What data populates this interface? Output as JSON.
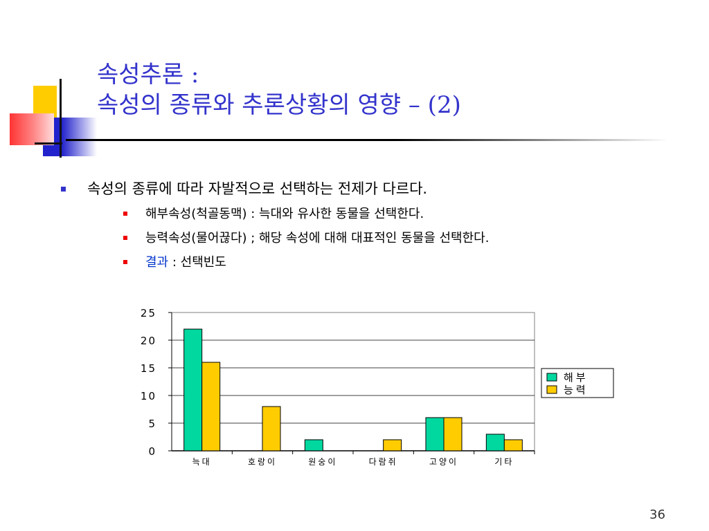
{
  "slide": {
    "title_line1": "속성추론 :",
    "title_line2": "속성의 종류와 추론상황의 영향 – (2)",
    "page_number": "36"
  },
  "bullets": {
    "main": "속성의 종류에 따라 자발적으로 선택하는 전제가 다르다.",
    "sub": [
      {
        "text": "해부속성(척골동맥) : 늑대와 유사한 동물을 선택한다."
      },
      {
        "text": "능력속성(물어끊다) ; 해당 속성에 대해 대표적인 동물을 선택한다."
      },
      {
        "label": "결과",
        "text": " : 선택빈도"
      }
    ]
  },
  "colors": {
    "title": "#3333cc",
    "main_bullet": "#3333cc",
    "sub_bullet": "#ee0000",
    "result_label": "#0033cc"
  },
  "chart_data": {
    "type": "bar",
    "categories": [
      "늑대",
      "호랑이",
      "원숭이",
      "다람쥐",
      "고양이",
      "기타"
    ],
    "series": [
      {
        "name": "해부",
        "values": [
          22,
          0,
          2,
          0,
          6,
          3
        ],
        "color": "#00d8a0"
      },
      {
        "name": "능력",
        "values": [
          16,
          8,
          0,
          2,
          6,
          2
        ],
        "color": "#ffcc00"
      }
    ],
    "yticks": [
      "0",
      "5",
      "10",
      "15",
      "20",
      "25"
    ],
    "ylim": [
      0,
      25
    ],
    "grid": true,
    "legend": "right"
  }
}
